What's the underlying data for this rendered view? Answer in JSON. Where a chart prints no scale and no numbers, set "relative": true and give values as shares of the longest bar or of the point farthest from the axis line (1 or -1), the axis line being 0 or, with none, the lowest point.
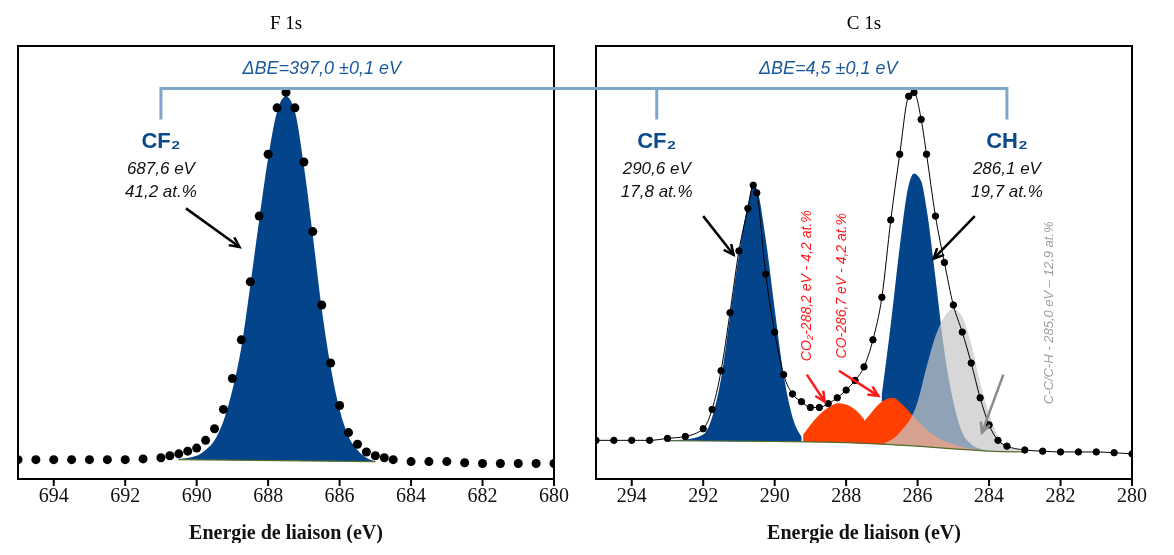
{
  "chart_data": [
    {
      "type": "area",
      "title": "F 1s",
      "xlabel": "Energie de liaison (eV)",
      "relative": true,
      "xlim": [
        695,
        680
      ],
      "xticks": [
        694,
        692,
        690,
        688,
        686,
        684,
        682,
        680
      ],
      "tick_labels": "x",
      "annotations": [
        "ΔBE=397,0 ±0,1 eV",
        "CF₂",
        "687,6 eV",
        "41,2 at.%"
      ],
      "series": [
        {
          "type": "line",
          "color": "#556b2f",
          "x": [
            690.5,
            685
          ],
          "values": [
            0.05,
            0.045
          ]
        },
        {
          "type": "area",
          "color": "#03448a",
          "x": [
            690.5,
            690,
            689.75,
            689.5,
            689.25,
            689,
            688.75,
            688.5,
            688.25,
            688,
            687.75,
            687.5,
            687.25,
            687,
            686.75,
            686.5,
            686.25,
            686,
            685.75,
            685.5,
            685.25,
            685
          ],
          "values": [
            0.052,
            0.06,
            0.075,
            0.1,
            0.15,
            0.23,
            0.34,
            0.5,
            0.67,
            0.83,
            0.95,
            0.99,
            0.95,
            0.81,
            0.63,
            0.44,
            0.29,
            0.18,
            0.11,
            0.075,
            0.055,
            0.046
          ]
        },
        {
          "type": "scatter",
          "color": "#000000",
          "marker": "circle",
          "x": [
            695,
            694.5,
            694,
            693.5,
            693,
            692.5,
            692,
            691.5,
            691,
            690.75,
            690.5,
            690.25,
            690,
            689.75,
            689.5,
            689.25,
            689,
            688.75,
            688.5,
            688.25,
            688,
            687.75,
            687.5,
            687.25,
            687,
            686.75,
            686.5,
            686.25,
            686,
            685.75,
            685.5,
            685.25,
            685,
            684.75,
            684.5,
            684,
            683.5,
            683,
            682.5,
            682,
            681.5,
            681,
            680.5,
            680
          ],
          "values": [
            0.05,
            0.05,
            0.05,
            0.05,
            0.05,
            0.05,
            0.05,
            0.052,
            0.055,
            0.06,
            0.065,
            0.072,
            0.08,
            0.1,
            0.13,
            0.18,
            0.26,
            0.36,
            0.51,
            0.68,
            0.84,
            0.96,
            1,
            0.96,
            0.82,
            0.64,
            0.45,
            0.3,
            0.19,
            0.12,
            0.09,
            0.07,
            0.06,
            0.055,
            0.05,
            0.045,
            0.045,
            0.045,
            0.042,
            0.04,
            0.04,
            0.04,
            0.04,
            0.04
          ]
        }
      ]
    },
    {
      "type": "area",
      "title": "C 1s",
      "xlabel": "Energie de liaison (eV)",
      "relative": true,
      "xlim": [
        295,
        280
      ],
      "xticks": [
        294,
        292,
        290,
        288,
        286,
        284,
        282,
        280
      ],
      "tick_labels": "x",
      "annotations": [
        "ΔBE=4,5 ±0,1 eV",
        "CF₂",
        "290,6 eV",
        "17,8 at.%",
        "CH₂",
        "286,1 eV",
        "19,7 at.%",
        "CO₂-288,2 eV - 4,2 at.%",
        "CO-286,7 eV - 4,2 at.%",
        "C-C/C-H - 285,0 eV – 12,9 at.%"
      ],
      "series": [
        {
          "type": "line",
          "color": "#556b2f",
          "x": [
            293,
            290,
            288,
            286,
            285,
            284,
            283
          ],
          "values": [
            0.099,
            0.097,
            0.094,
            0.085,
            0.078,
            0.072,
            0.07
          ]
        },
        {
          "type": "area",
          "color": "#03448a",
          "x": [
            293,
            292.5,
            292,
            291.75,
            291.5,
            291.25,
            291,
            290.75,
            290.6,
            290.5,
            290.25,
            290,
            289.75,
            289.5,
            289.25
          ],
          "values": [
            0.1,
            0.102,
            0.115,
            0.16,
            0.26,
            0.42,
            0.58,
            0.71,
            0.76,
            0.75,
            0.62,
            0.44,
            0.27,
            0.16,
            0.11
          ]
        },
        {
          "type": "area",
          "color": "#03448a",
          "x": [
            287,
            286.75,
            286.5,
            286.25,
            286.1,
            285.9,
            285.75,
            285.5,
            285.25,
            285,
            284.75,
            284.5,
            284.25,
            284
          ],
          "values": [
            0.22,
            0.4,
            0.6,
            0.76,
            0.79,
            0.77,
            0.7,
            0.52,
            0.33,
            0.2,
            0.12,
            0.09,
            0.078,
            0.072
          ]
        },
        {
          "type": "area",
          "color": "#ff4000",
          "x": [
            289.2,
            289,
            288.5,
            288.2,
            287.75,
            287.5
          ],
          "values": [
            0.115,
            0.14,
            0.185,
            0.196,
            0.18,
            0.155
          ]
        },
        {
          "type": "area",
          "color": "#ff4000",
          "x": [
            288.5,
            288,
            287.5,
            287,
            286.7,
            286.4,
            286,
            285.5,
            285,
            284.5,
            284
          ],
          "values": [
            0.096,
            0.11,
            0.15,
            0.2,
            0.21,
            0.19,
            0.15,
            0.11,
            0.09,
            0.078,
            0.072
          ]
        },
        {
          "type": "area",
          "color": "#c8c8c8",
          "x": [
            287,
            286.5,
            286,
            285.75,
            285.5,
            285.25,
            285,
            284.75,
            284.5,
            284.25,
            284,
            283.75,
            283.5,
            283
          ],
          "values": [
            0.09,
            0.12,
            0.2,
            0.29,
            0.37,
            0.42,
            0.44,
            0.42,
            0.35,
            0.25,
            0.17,
            0.11,
            0.085,
            0.072
          ]
        },
        {
          "type": "line",
          "color": "#000000",
          "marker": "circle",
          "x": [
            295,
            294.5,
            294,
            293.5,
            293,
            292.5,
            292,
            291.75,
            291.5,
            291.25,
            291,
            290.75,
            290.6,
            290.5,
            290.25,
            290,
            289.75,
            289.5,
            289.25,
            289,
            288.75,
            288.5,
            288.25,
            288,
            287.75,
            287.5,
            287.25,
            287,
            286.75,
            286.5,
            286.25,
            286.1,
            285.9,
            285.75,
            285.5,
            285.25,
            285,
            284.75,
            284.5,
            284.25,
            284,
            283.75,
            283.5,
            283,
            282.5,
            282,
            281.5,
            281,
            280.5,
            280
          ],
          "values": [
            0.1,
            0.1,
            0.1,
            0.1,
            0.105,
            0.11,
            0.13,
            0.18,
            0.28,
            0.43,
            0.59,
            0.7,
            0.76,
            0.74,
            0.53,
            0.38,
            0.27,
            0.22,
            0.2,
            0.185,
            0.185,
            0.195,
            0.21,
            0.23,
            0.255,
            0.29,
            0.36,
            0.47,
            0.67,
            0.84,
            0.99,
            1,
            0.93,
            0.84,
            0.68,
            0.56,
            0.45,
            0.38,
            0.3,
            0.21,
            0.14,
            0.1,
            0.085,
            0.075,
            0.072,
            0.07,
            0.07,
            0.07,
            0.068,
            0.065
          ]
        }
      ]
    }
  ]
}
